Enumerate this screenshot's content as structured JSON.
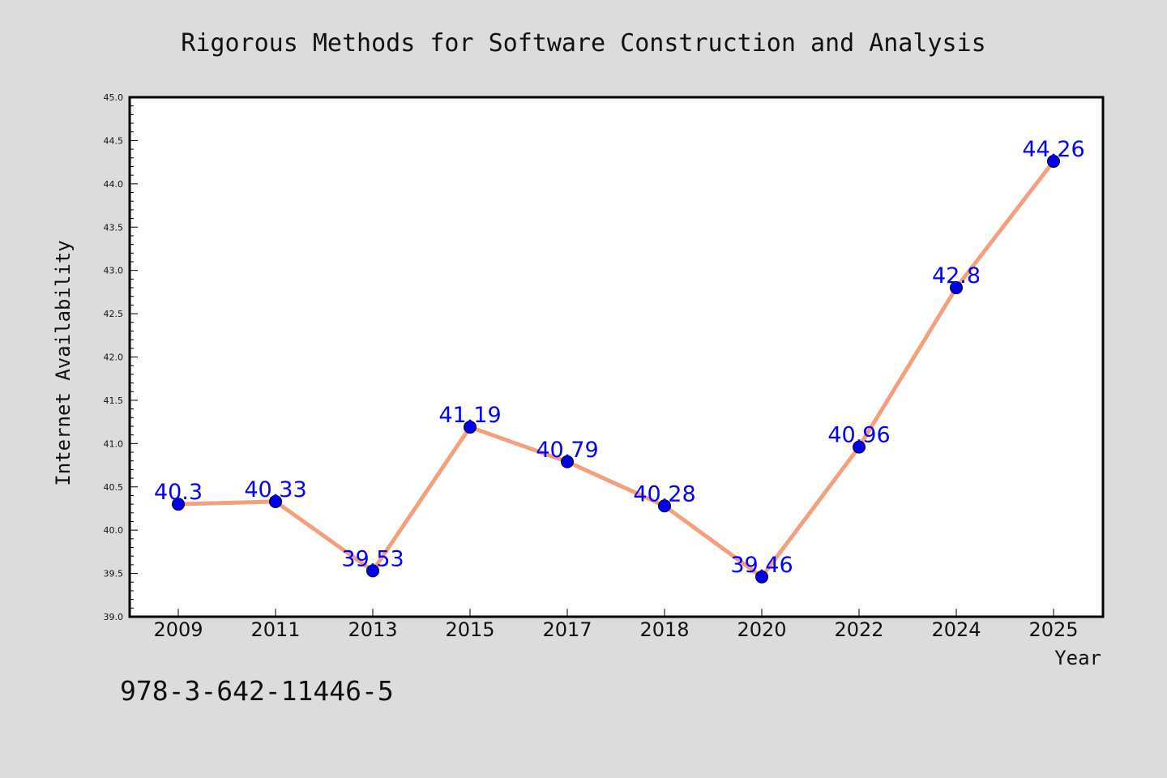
{
  "chart_data": {
    "type": "line",
    "title": "Rigorous Methods for Software Construction and Analysis",
    "xlabel": "Year",
    "ylabel": "Internet Availability",
    "categories": [
      "2009",
      "2011",
      "2013",
      "2015",
      "2017",
      "2018",
      "2020",
      "2022",
      "2024",
      "2025"
    ],
    "series": [
      {
        "values": [
          40.3,
          40.33,
          39.53,
          41.19,
          40.79,
          40.28,
          39.46,
          40.96,
          42.8,
          44.26
        ],
        "labels": [
          "40.3",
          "40.33",
          "39.53",
          "41.19",
          "40.79",
          "40.28",
          "39.46",
          "40.96",
          "42.8",
          "44.26"
        ]
      }
    ],
    "ylim": [
      39.0,
      45.0
    ],
    "yticks": [
      "39.0",
      "39.5",
      "40.0",
      "40.5",
      "41.0",
      "41.5",
      "42.0",
      "42.5",
      "43.0",
      "43.5",
      "44.0",
      "44.5",
      "45.0"
    ],
    "grid": false,
    "line_color": "#f4a07e",
    "marker_color": "#0000ee",
    "label_color": "#0000ff",
    "background_color": "#dcdcdc"
  },
  "footnote": "978-3-642-11446-5"
}
